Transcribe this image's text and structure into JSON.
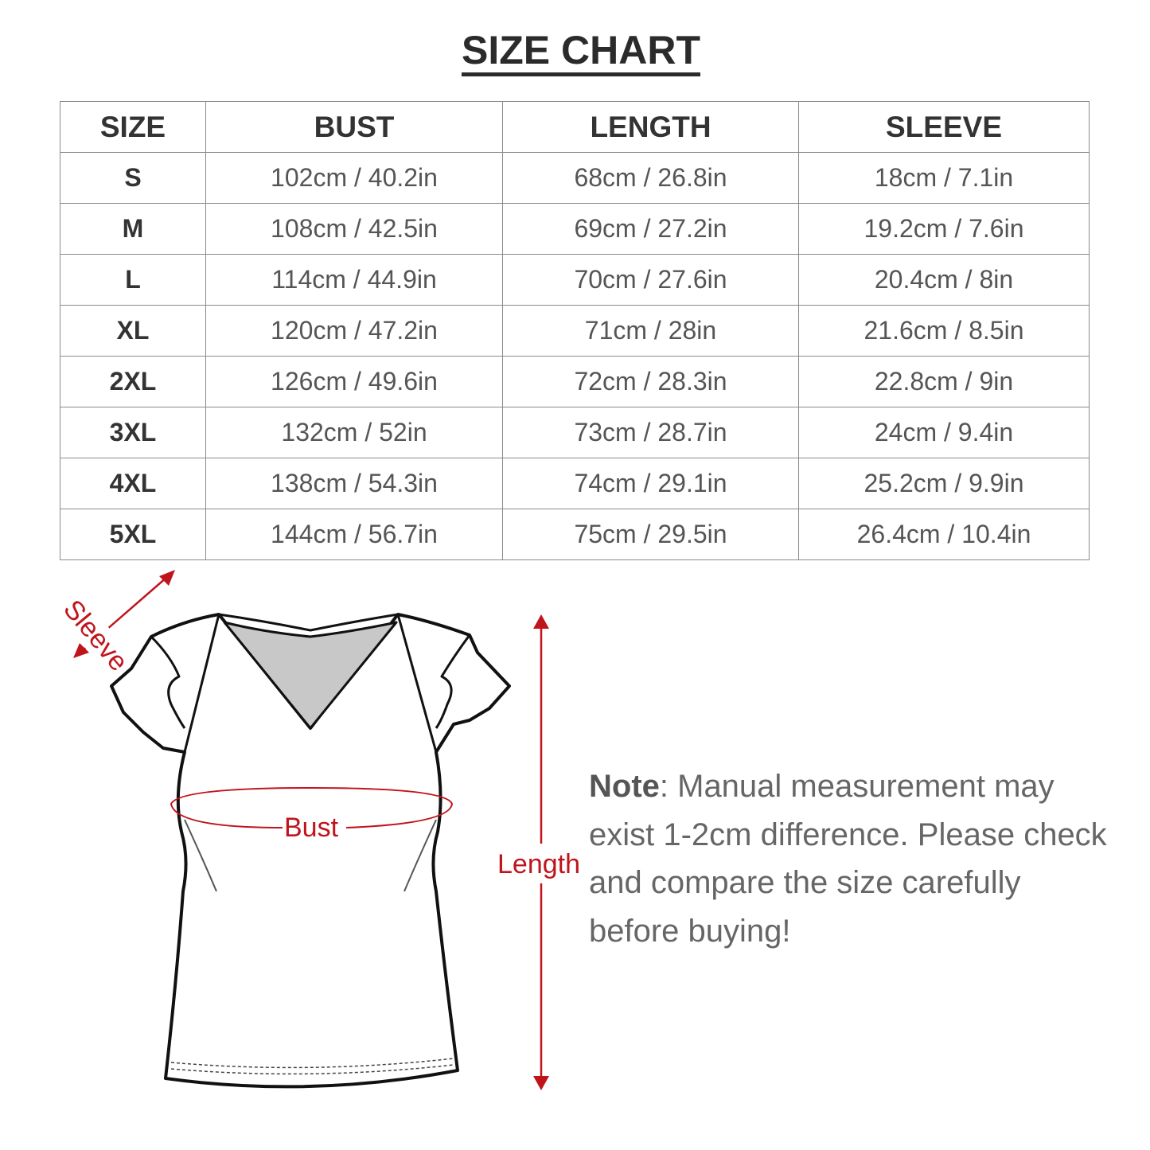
{
  "title": "SIZE CHART",
  "table": {
    "headers": [
      "SIZE",
      "BUST",
      "LENGTH",
      "SLEEVE"
    ],
    "rows": [
      [
        "S",
        "102cm / 40.2in",
        "68cm / 26.8in",
        "18cm / 7.1in"
      ],
      [
        "M",
        "108cm / 42.5in",
        "69cm / 27.2in",
        "19.2cm / 7.6in"
      ],
      [
        "L",
        "114cm / 44.9in",
        "70cm / 27.6in",
        "20.4cm / 8in"
      ],
      [
        "XL",
        "120cm / 47.2in",
        "71cm / 28in",
        "21.6cm / 8.5in"
      ],
      [
        "2XL",
        "126cm / 49.6in",
        "72cm / 28.3in",
        "22.8cm / 9in"
      ],
      [
        "3XL",
        "132cm / 52in",
        "73cm / 28.7in",
        "24cm / 9.4in"
      ],
      [
        "4XL",
        "138cm / 54.3in",
        "74cm / 29.1in",
        "25.2cm / 9.9in"
      ],
      [
        "5XL",
        "144cm / 56.7in",
        "75cm / 29.5in",
        "26.4cm / 10.4in"
      ]
    ]
  },
  "diagram": {
    "sleeve_label": "Sleeve",
    "bust_label": "Bust",
    "length_label": "Length",
    "accent_color": "#c0141c"
  },
  "note": {
    "label": "Note",
    "text": ": Manual measurement may exist 1-2cm difference. Please check and compare the size carefully before buying!"
  }
}
